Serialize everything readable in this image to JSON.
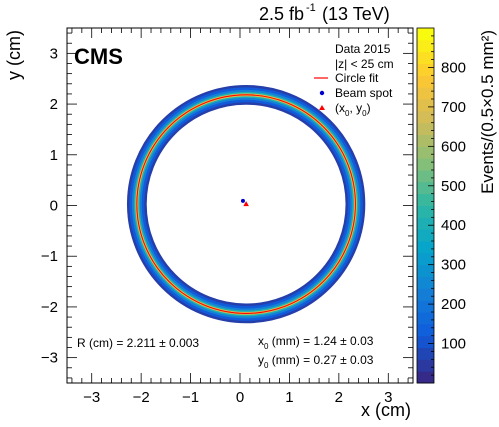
{
  "chart_data": {
    "type": "heatmap",
    "lumi_label": "2.5 fb",
    "lumi_exp": "-1",
    "lumi_energy": "(13 TeV)",
    "experiment": "CMS",
    "xlabel": "x (cm)",
    "ylabel": "y (cm)",
    "colorbar_label": "Events/(0.5×0.5 mm²)",
    "xlim": [
      -3.5,
      3.5
    ],
    "ylim": [
      -3.5,
      3.5
    ],
    "zlim": [
      0,
      900
    ],
    "x_ticks": [
      "−3",
      "−2",
      "−1",
      "0",
      "1",
      "2",
      "3"
    ],
    "y_ticks": [
      "−3",
      "−2",
      "−1",
      "0",
      "1",
      "2",
      "3"
    ],
    "z_ticks": [
      100,
      200,
      300,
      400,
      500,
      600,
      700,
      800
    ],
    "palette": [
      "#352a87",
      "#0f5cdd",
      "#1481d6",
      "#06a4ca",
      "#2eb7a4",
      "#87bf77",
      "#d1bb59",
      "#fec832",
      "#f9fb0e"
    ],
    "legend": {
      "header_line1": "Data 2015",
      "header_line2": "|z| < 25 cm",
      "entries": [
        {
          "label": "Circle fit",
          "marker": "line",
          "color": "#ff0000"
        },
        {
          "label": "Beam spot",
          "marker": "dot",
          "color": "#0000cc"
        },
        {
          "label": "(x",
          "sub1": "0",
          "mid": ", y",
          "sub2": "0",
          "end": ")",
          "marker": "triangle",
          "color": "#ff0000"
        }
      ]
    },
    "annotations": {
      "radius": "R (cm)   = 2.211 ± 0.003",
      "x0_prefix": "x",
      "x0_sub": "0",
      "x0_value": " (mm)   = 1.24 ± 0.03",
      "y0_prefix": "y",
      "y0_sub": "0",
      "y0_value": " (mm)   = 0.27 ± 0.03"
    },
    "circle_fit": {
      "radius_cm": 2.211,
      "x0_mm": 1.24,
      "y0_mm": 0.27
    },
    "beam_spot": {
      "x_cm": 0.06,
      "y_cm": 0.09
    },
    "fit_center_point": {
      "x_cm": 0.124,
      "y_cm": 0.027
    }
  }
}
